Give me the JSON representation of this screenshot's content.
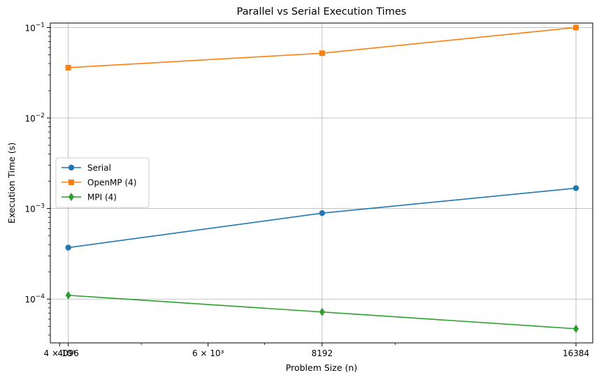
{
  "chart_data": {
    "type": "line",
    "title": "Parallel vs Serial Execution Times",
    "xlabel": "Problem Size (n)",
    "ylabel": "Execution Time (s)",
    "x_scale": "log",
    "y_scale": "log",
    "x": [
      4096,
      8192,
      16384
    ],
    "xlim": [
      3900,
      17150
    ],
    "ylim": [
      3.28e-05,
      0.112
    ],
    "x_tick_labels": [
      {
        "value": 4000,
        "text": "4 × 10³"
      },
      {
        "value": 4096,
        "text": "4096"
      },
      {
        "value": 6000,
        "text": "6 × 10³"
      },
      {
        "value": 8192,
        "text": "8192"
      },
      {
        "value": 16384,
        "text": "16384"
      }
    ],
    "x_minor_ticks": [
      5000,
      7000,
      10000
    ],
    "y_ticks": [
      {
        "value": 0.0001,
        "base": "10",
        "exp": "−4"
      },
      {
        "value": 0.001,
        "base": "10",
        "exp": "−3"
      },
      {
        "value": 0.01,
        "base": "10",
        "exp": "−2"
      },
      {
        "value": 0.1,
        "base": "10",
        "exp": "−1"
      }
    ],
    "grid": true,
    "legend_position": "center-left",
    "series": [
      {
        "name": "Serial",
        "marker": "circle",
        "color": "#1f77b4",
        "values": [
          0.00037,
          0.00089,
          0.00168
        ]
      },
      {
        "name": "OpenMP (4)",
        "marker": "square",
        "color": "#ff7f0e",
        "values": [
          0.036,
          0.052,
          0.1
        ]
      },
      {
        "name": "MPI (4)",
        "marker": "diamond",
        "color": "#2ca02c",
        "values": [
          0.00011,
          7.2e-05,
          4.7e-05
        ]
      }
    ]
  }
}
